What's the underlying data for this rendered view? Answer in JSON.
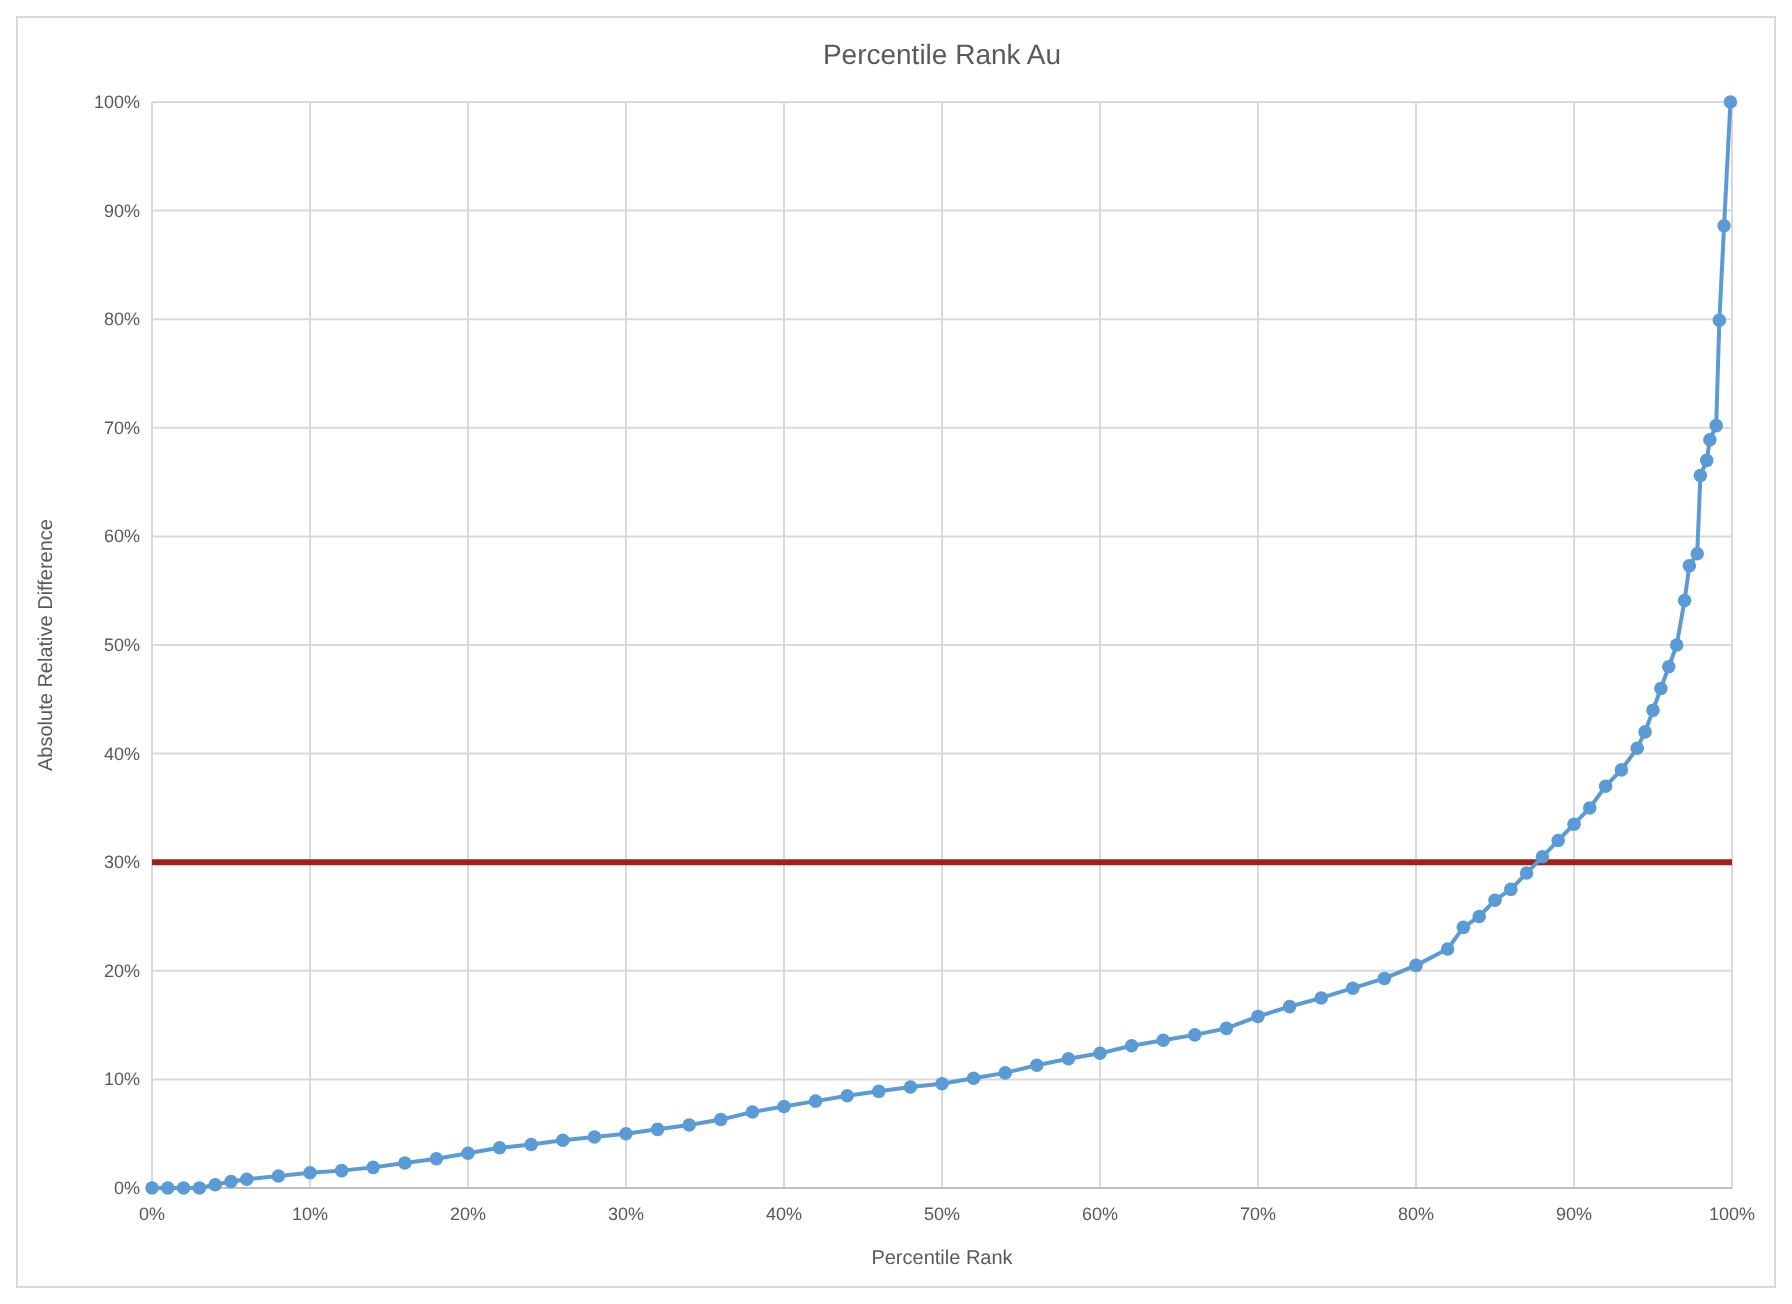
{
  "chart_data": {
    "type": "line",
    "title": "Percentile Rank Au",
    "xlabel": "Percentile Rank",
    "ylabel": "Absolute Relative Difference",
    "x": [
      0,
      1,
      2,
      3,
      4,
      5,
      6,
      8,
      10,
      12,
      14,
      16,
      18,
      20,
      22,
      24,
      26,
      28,
      30,
      32,
      34,
      36,
      38,
      40,
      42,
      44,
      46,
      48,
      50,
      52,
      54,
      56,
      58,
      60,
      62,
      64,
      66,
      68,
      70,
      72,
      74,
      76,
      78,
      80,
      82,
      83,
      84,
      85,
      86,
      87,
      88,
      89,
      90,
      91,
      92,
      93,
      94,
      94.5,
      95,
      95.5,
      96,
      96.5,
      97,
      97.3,
      97.8,
      98,
      98.4,
      98.6,
      99,
      99.2,
      99.5,
      99.9
    ],
    "series": [
      {
        "color": "#5b9bd5",
        "values": [
          0,
          0,
          0,
          0,
          0.3,
          0.6,
          0.8,
          1.1,
          1.4,
          1.6,
          1.9,
          2.3,
          2.7,
          3.2,
          3.7,
          4.0,
          4.4,
          4.7,
          5.0,
          5.4,
          5.8,
          6.3,
          7.0,
          7.5,
          8.0,
          8.5,
          8.9,
          9.3,
          9.6,
          10.1,
          10.6,
          11.3,
          11.9,
          12.4,
          13.1,
          13.6,
          14.1,
          14.7,
          15.8,
          16.7,
          17.5,
          18.4,
          19.3,
          20.5,
          22.0,
          24.0,
          25.0,
          26.5,
          27.5,
          29.0,
          30.5,
          32.0,
          33.5,
          35.0,
          37.0,
          38.5,
          40.5,
          42,
          44,
          46,
          48,
          50,
          54.1,
          57.3,
          58.4,
          65.6,
          67,
          68.9,
          70.2,
          79.9,
          88.6,
          100
        ]
      }
    ],
    "xlim": [
      0,
      100
    ],
    "ylim": [
      0,
      100
    ],
    "xticks": [
      {
        "value": 0,
        "label": "0%"
      },
      {
        "value": 10,
        "label": "10%"
      },
      {
        "value": 20,
        "label": "20%"
      },
      {
        "value": 30,
        "label": "30%"
      },
      {
        "value": 40,
        "label": "40%"
      },
      {
        "value": 50,
        "label": "50%"
      },
      {
        "value": 60,
        "label": "60%"
      },
      {
        "value": 70,
        "label": "70%"
      },
      {
        "value": 80,
        "label": "80%"
      },
      {
        "value": 90,
        "label": "90%"
      },
      {
        "value": 100,
        "label": "100%"
      }
    ],
    "yticks": [
      {
        "value": 0,
        "label": "0%"
      },
      {
        "value": 10,
        "label": "10%"
      },
      {
        "value": 20,
        "label": "20%"
      },
      {
        "value": 30,
        "label": "30%"
      },
      {
        "value": 40,
        "label": "40%"
      },
      {
        "value": 50,
        "label": "50%"
      },
      {
        "value": 60,
        "label": "60%"
      },
      {
        "value": 70,
        "label": "70%"
      },
      {
        "value": 80,
        "label": "80%"
      },
      {
        "value": 90,
        "label": "90%"
      },
      {
        "value": 100,
        "label": "100%"
      }
    ],
    "ref_lines": [
      {
        "axis": "y",
        "value": 30,
        "color": "#a0201a"
      }
    ],
    "grid": true,
    "marker": "circle",
    "line_style": "solid"
  }
}
